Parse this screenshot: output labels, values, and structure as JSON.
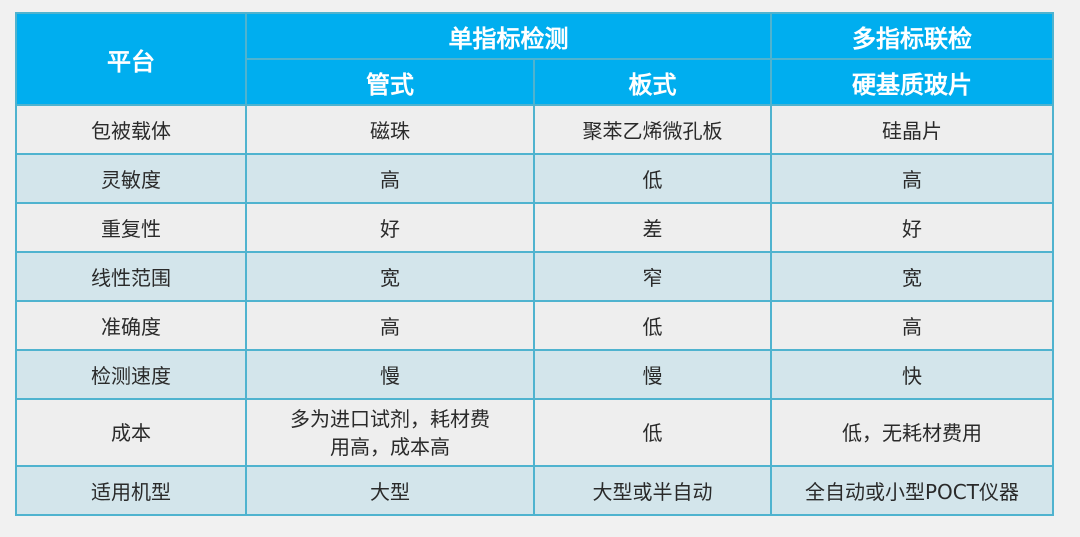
{
  "table": {
    "header": {
      "platform": "平台",
      "group_single": "单指标检测",
      "group_multi": "多指标联检",
      "col_tube": "管式",
      "col_plate": "板式",
      "col_chip": "硬基质玻片"
    },
    "rows": [
      {
        "label": "包被载体",
        "tube": "磁珠",
        "plate": "聚苯乙烯微孔板",
        "chip": "硅晶片"
      },
      {
        "label": "灵敏度",
        "tube": "高",
        "plate": "低",
        "chip": "高"
      },
      {
        "label": "重复性",
        "tube": "好",
        "plate": "差",
        "chip": "好"
      },
      {
        "label": "线性范围",
        "tube": "宽",
        "plate": "窄",
        "chip": "宽"
      },
      {
        "label": "准确度",
        "tube": "高",
        "plate": "低",
        "chip": "高"
      },
      {
        "label": "检测速度",
        "tube": "慢",
        "plate": "慢",
        "chip": "快"
      },
      {
        "label": "成本",
        "tube": "多为进口试剂，耗材费用高，成本高",
        "plate": "低",
        "chip": "低，无耗材费用"
      },
      {
        "label": "适用机型",
        "tube": "大型",
        "plate": "大型或半自动",
        "chip": "全自动或小型POCT仪器"
      }
    ]
  }
}
